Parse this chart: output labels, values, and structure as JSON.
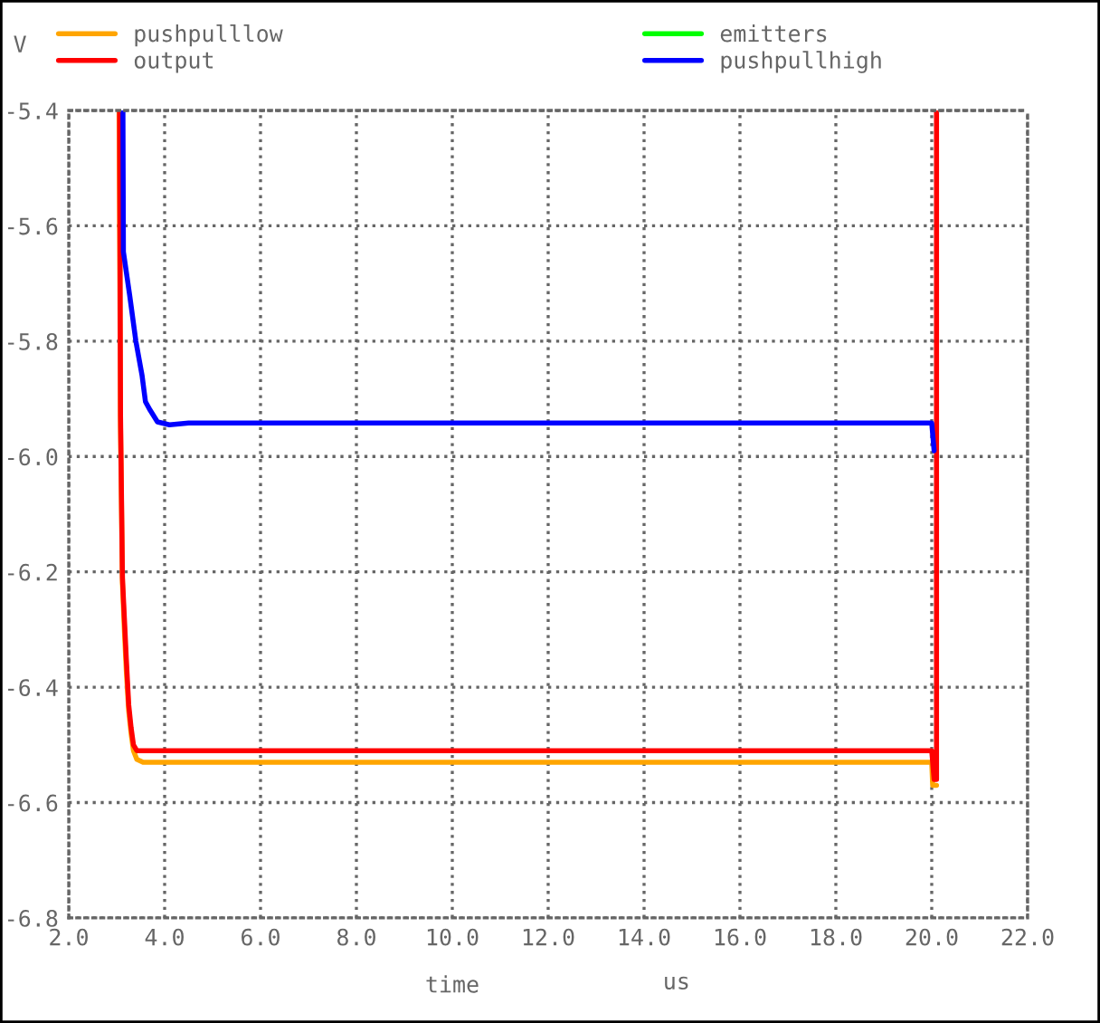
{
  "chart_data": {
    "type": "line",
    "ylabel": "V",
    "xlabel": "time",
    "annotations": [
      "us"
    ],
    "xlim": [
      2,
      22
    ],
    "ylim": [
      -6.8,
      -5.4
    ],
    "xticks": [
      {
        "value": 2,
        "label": "2.0"
      },
      {
        "value": 4,
        "label": "4.0"
      },
      {
        "value": 6,
        "label": "6.0"
      },
      {
        "value": 8,
        "label": "8.0"
      },
      {
        "value": 10,
        "label": "10.0"
      },
      {
        "value": 12,
        "label": "12.0"
      },
      {
        "value": 14,
        "label": "14.0"
      },
      {
        "value": 16,
        "label": "16.0"
      },
      {
        "value": 18,
        "label": "18.0"
      },
      {
        "value": 20,
        "label": "20.0"
      },
      {
        "value": 22,
        "label": "22.0"
      }
    ],
    "yticks": [
      {
        "value": -6.8,
        "label": "-6.8"
      },
      {
        "value": -6.6,
        "label": "-6.6"
      },
      {
        "value": -6.4,
        "label": "-6.4"
      },
      {
        "value": -6.2,
        "label": "-6.2"
      },
      {
        "value": -6.0,
        "label": "-6.0"
      },
      {
        "value": -5.8,
        "label": "-5.8"
      },
      {
        "value": -5.6,
        "label": "-5.6"
      },
      {
        "value": -5.4,
        "label": "-5.4"
      }
    ],
    "grid": true,
    "legend": "top left",
    "line_style": "solid",
    "marker": "none",
    "series": [
      {
        "name": "pushpulllow",
        "color": "#ffa500",
        "x": [
          3.05,
          3.08,
          3.12,
          3.16,
          3.2,
          3.25,
          3.3,
          3.35,
          3.42,
          3.55,
          20.0,
          20.02,
          20.1
        ],
        "values": [
          -5.4,
          -5.95,
          -6.22,
          -6.3,
          -6.37,
          -6.44,
          -6.48,
          -6.51,
          -6.525,
          -6.53,
          -6.53,
          -6.57,
          -6.57
        ]
      },
      {
        "name": "output",
        "color": "#ff0000",
        "x": [
          3.06,
          3.08,
          3.12,
          3.16,
          3.2,
          3.25,
          3.3,
          3.35,
          3.42,
          3.5,
          20.0,
          20.05,
          20.1,
          20.1
        ],
        "values": [
          -5.4,
          -5.93,
          -6.21,
          -6.28,
          -6.35,
          -6.43,
          -6.47,
          -6.5,
          -6.51,
          -6.51,
          -6.51,
          -6.56,
          -6.56,
          -5.4
        ]
      },
      {
        "name": "emitters",
        "color": "#00ff00"
      },
      {
        "name": "pushpullhigh",
        "color": "#0000ff",
        "x": [
          3.13,
          3.14,
          3.27,
          3.4,
          3.53,
          3.6,
          3.7,
          3.85,
          4.1,
          4.5,
          10.0,
          20.0,
          20.05
        ],
        "values": [
          -5.4,
          -5.645,
          -5.72,
          -5.8,
          -5.86,
          -5.905,
          -5.92,
          -5.94,
          -5.945,
          -5.942,
          -5.942,
          -5.942,
          -5.99
        ]
      }
    ]
  }
}
